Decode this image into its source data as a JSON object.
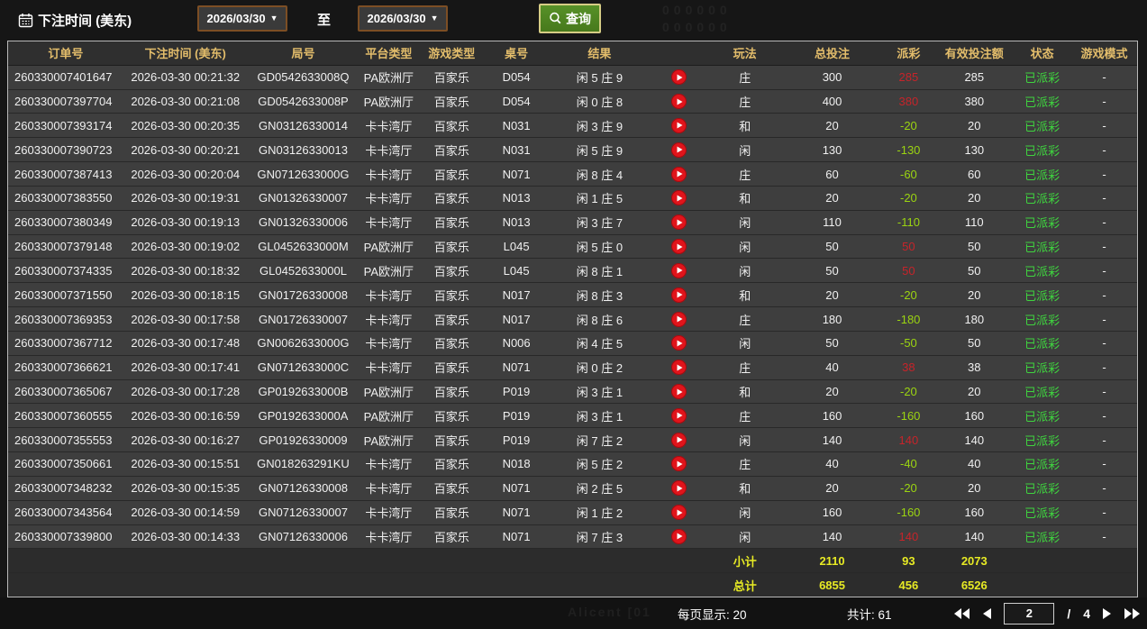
{
  "topbar": {
    "title": "下注时间 (美东)",
    "date_from": "2026/03/30",
    "to_label": "至",
    "date_to": "2026/03/30",
    "search_label": "查询"
  },
  "watermark": {
    "top": "000000\n000000",
    "bottom": "Alicent  [01"
  },
  "colors": {
    "header_text": "#e3bd6b",
    "payout_positive_red": "#c6242a",
    "payout_negative_green": "#9bd411",
    "status_green": "#3fd43f",
    "summary_yellow": "#e7ea24",
    "button_green": "#47791c",
    "date_border_brown": "#7c4e24",
    "play_icon_red": "#e0141b"
  },
  "table": {
    "columns": [
      "订单号",
      "下注时间 (美东)",
      "局号",
      "平台类型",
      "游戏类型",
      "桌号",
      "结果",
      "玩法",
      "总投注",
      "派彩",
      "有效投注额",
      "状态",
      "游戏模式"
    ],
    "rows": [
      {
        "order_no": "260330007401647",
        "time": "2026-03-30 00:21:32",
        "round_no": "GD0542633008Q",
        "platform": "PA欧洲厅",
        "game_type": "百家乐",
        "table_no": "D054",
        "result": "闲 5 庄 9",
        "play": "庄",
        "total_bet": "300",
        "payout": "285",
        "payout_color": "red",
        "valid_bet": "285",
        "status": "已派彩",
        "mode": "-"
      },
      {
        "order_no": "260330007397704",
        "time": "2026-03-30 00:21:08",
        "round_no": "GD0542633008P",
        "platform": "PA欧洲厅",
        "game_type": "百家乐",
        "table_no": "D054",
        "result": "闲 0 庄 8",
        "play": "庄",
        "total_bet": "400",
        "payout": "380",
        "payout_color": "red",
        "valid_bet": "380",
        "status": "已派彩",
        "mode": "-"
      },
      {
        "order_no": "260330007393174",
        "time": "2026-03-30 00:20:35",
        "round_no": "GN03126330014",
        "platform": "卡卡湾厅",
        "game_type": "百家乐",
        "table_no": "N031",
        "result": "闲 3 庄 9",
        "play": "和",
        "total_bet": "20",
        "payout": "-20",
        "payout_color": "green",
        "valid_bet": "20",
        "status": "已派彩",
        "mode": "-"
      },
      {
        "order_no": "260330007390723",
        "time": "2026-03-30 00:20:21",
        "round_no": "GN03126330013",
        "platform": "卡卡湾厅",
        "game_type": "百家乐",
        "table_no": "N031",
        "result": "闲 5 庄 9",
        "play": "闲",
        "total_bet": "130",
        "payout": "-130",
        "payout_color": "green",
        "valid_bet": "130",
        "status": "已派彩",
        "mode": "-"
      },
      {
        "order_no": "260330007387413",
        "time": "2026-03-30 00:20:04",
        "round_no": "GN0712633000G",
        "platform": "卡卡湾厅",
        "game_type": "百家乐",
        "table_no": "N071",
        "result": "闲 8 庄 4",
        "play": "庄",
        "total_bet": "60",
        "payout": "-60",
        "payout_color": "green",
        "valid_bet": "60",
        "status": "已派彩",
        "mode": "-"
      },
      {
        "order_no": "260330007383550",
        "time": "2026-03-30 00:19:31",
        "round_no": "GN01326330007",
        "platform": "卡卡湾厅",
        "game_type": "百家乐",
        "table_no": "N013",
        "result": "闲 1 庄 5",
        "play": "和",
        "total_bet": "20",
        "payout": "-20",
        "payout_color": "green",
        "valid_bet": "20",
        "status": "已派彩",
        "mode": "-"
      },
      {
        "order_no": "260330007380349",
        "time": "2026-03-30 00:19:13",
        "round_no": "GN01326330006",
        "platform": "卡卡湾厅",
        "game_type": "百家乐",
        "table_no": "N013",
        "result": "闲 3 庄 7",
        "play": "闲",
        "total_bet": "110",
        "payout": "-110",
        "payout_color": "green",
        "valid_bet": "110",
        "status": "已派彩",
        "mode": "-"
      },
      {
        "order_no": "260330007379148",
        "time": "2026-03-30 00:19:02",
        "round_no": "GL0452633000M",
        "platform": "PA欧洲厅",
        "game_type": "百家乐",
        "table_no": "L045",
        "result": "闲 5 庄 0",
        "play": "闲",
        "total_bet": "50",
        "payout": "50",
        "payout_color": "red",
        "valid_bet": "50",
        "status": "已派彩",
        "mode": "-"
      },
      {
        "order_no": "260330007374335",
        "time": "2026-03-30 00:18:32",
        "round_no": "GL0452633000L",
        "platform": "PA欧洲厅",
        "game_type": "百家乐",
        "table_no": "L045",
        "result": "闲 8 庄 1",
        "play": "闲",
        "total_bet": "50",
        "payout": "50",
        "payout_color": "red",
        "valid_bet": "50",
        "status": "已派彩",
        "mode": "-"
      },
      {
        "order_no": "260330007371550",
        "time": "2026-03-30 00:18:15",
        "round_no": "GN01726330008",
        "platform": "卡卡湾厅",
        "game_type": "百家乐",
        "table_no": "N017",
        "result": "闲 8 庄 3",
        "play": "和",
        "total_bet": "20",
        "payout": "-20",
        "payout_color": "green",
        "valid_bet": "20",
        "status": "已派彩",
        "mode": "-"
      },
      {
        "order_no": "260330007369353",
        "time": "2026-03-30 00:17:58",
        "round_no": "GN01726330007",
        "platform": "卡卡湾厅",
        "game_type": "百家乐",
        "table_no": "N017",
        "result": "闲 8 庄 6",
        "play": "庄",
        "total_bet": "180",
        "payout": "-180",
        "payout_color": "green",
        "valid_bet": "180",
        "status": "已派彩",
        "mode": "-"
      },
      {
        "order_no": "260330007367712",
        "time": "2026-03-30 00:17:48",
        "round_no": "GN0062633000G",
        "platform": "卡卡湾厅",
        "game_type": "百家乐",
        "table_no": "N006",
        "result": "闲 4 庄 5",
        "play": "闲",
        "total_bet": "50",
        "payout": "-50",
        "payout_color": "green",
        "valid_bet": "50",
        "status": "已派彩",
        "mode": "-"
      },
      {
        "order_no": "260330007366621",
        "time": "2026-03-30 00:17:41",
        "round_no": "GN0712633000C",
        "platform": "卡卡湾厅",
        "game_type": "百家乐",
        "table_no": "N071",
        "result": "闲 0 庄 2",
        "play": "庄",
        "total_bet": "40",
        "payout": "38",
        "payout_color": "red",
        "valid_bet": "38",
        "status": "已派彩",
        "mode": "-"
      },
      {
        "order_no": "260330007365067",
        "time": "2026-03-30 00:17:28",
        "round_no": "GP0192633000B",
        "platform": "PA欧洲厅",
        "game_type": "百家乐",
        "table_no": "P019",
        "result": "闲 3 庄 1",
        "play": "和",
        "total_bet": "20",
        "payout": "-20",
        "payout_color": "green",
        "valid_bet": "20",
        "status": "已派彩",
        "mode": "-"
      },
      {
        "order_no": "260330007360555",
        "time": "2026-03-30 00:16:59",
        "round_no": "GP0192633000A",
        "platform": "PA欧洲厅",
        "game_type": "百家乐",
        "table_no": "P019",
        "result": "闲 3 庄 1",
        "play": "庄",
        "total_bet": "160",
        "payout": "-160",
        "payout_color": "green",
        "valid_bet": "160",
        "status": "已派彩",
        "mode": "-"
      },
      {
        "order_no": "260330007355553",
        "time": "2026-03-30 00:16:27",
        "round_no": "GP01926330009",
        "platform": "PA欧洲厅",
        "game_type": "百家乐",
        "table_no": "P019",
        "result": "闲 7 庄 2",
        "play": "闲",
        "total_bet": "140",
        "payout": "140",
        "payout_color": "red",
        "valid_bet": "140",
        "status": "已派彩",
        "mode": "-"
      },
      {
        "order_no": "260330007350661",
        "time": "2026-03-30 00:15:51",
        "round_no": "GN018263291KU",
        "platform": "卡卡湾厅",
        "game_type": "百家乐",
        "table_no": "N018",
        "result": "闲 5 庄 2",
        "play": "庄",
        "total_bet": "40",
        "payout": "-40",
        "payout_color": "green",
        "valid_bet": "40",
        "status": "已派彩",
        "mode": "-"
      },
      {
        "order_no": "260330007348232",
        "time": "2026-03-30 00:15:35",
        "round_no": "GN07126330008",
        "platform": "卡卡湾厅",
        "game_type": "百家乐",
        "table_no": "N071",
        "result": "闲 2 庄 5",
        "play": "和",
        "total_bet": "20",
        "payout": "-20",
        "payout_color": "green",
        "valid_bet": "20",
        "status": "已派彩",
        "mode": "-"
      },
      {
        "order_no": "260330007343564",
        "time": "2026-03-30 00:14:59",
        "round_no": "GN07126330007",
        "platform": "卡卡湾厅",
        "game_type": "百家乐",
        "table_no": "N071",
        "result": "闲 1 庄 2",
        "play": "闲",
        "total_bet": "160",
        "payout": "-160",
        "payout_color": "green",
        "valid_bet": "160",
        "status": "已派彩",
        "mode": "-"
      },
      {
        "order_no": "260330007339800",
        "time": "2026-03-30 00:14:33",
        "round_no": "GN07126330006",
        "platform": "卡卡湾厅",
        "game_type": "百家乐",
        "table_no": "N071",
        "result": "闲 7 庄 3",
        "play": "闲",
        "total_bet": "140",
        "payout": "140",
        "payout_color": "red",
        "valid_bet": "140",
        "status": "已派彩",
        "mode": "-"
      }
    ],
    "subtotal": {
      "label": "小计",
      "total_bet": "2110",
      "payout": "93",
      "valid_bet": "2073"
    },
    "grand_total": {
      "label": "总计",
      "total_bet": "6855",
      "payout": "456",
      "valid_bet": "6526"
    }
  },
  "footer": {
    "per_page_label": "每页显示: 20",
    "total_count_label": "共计: 61",
    "page_input": "2",
    "page_separator": "/",
    "page_total": "4"
  }
}
